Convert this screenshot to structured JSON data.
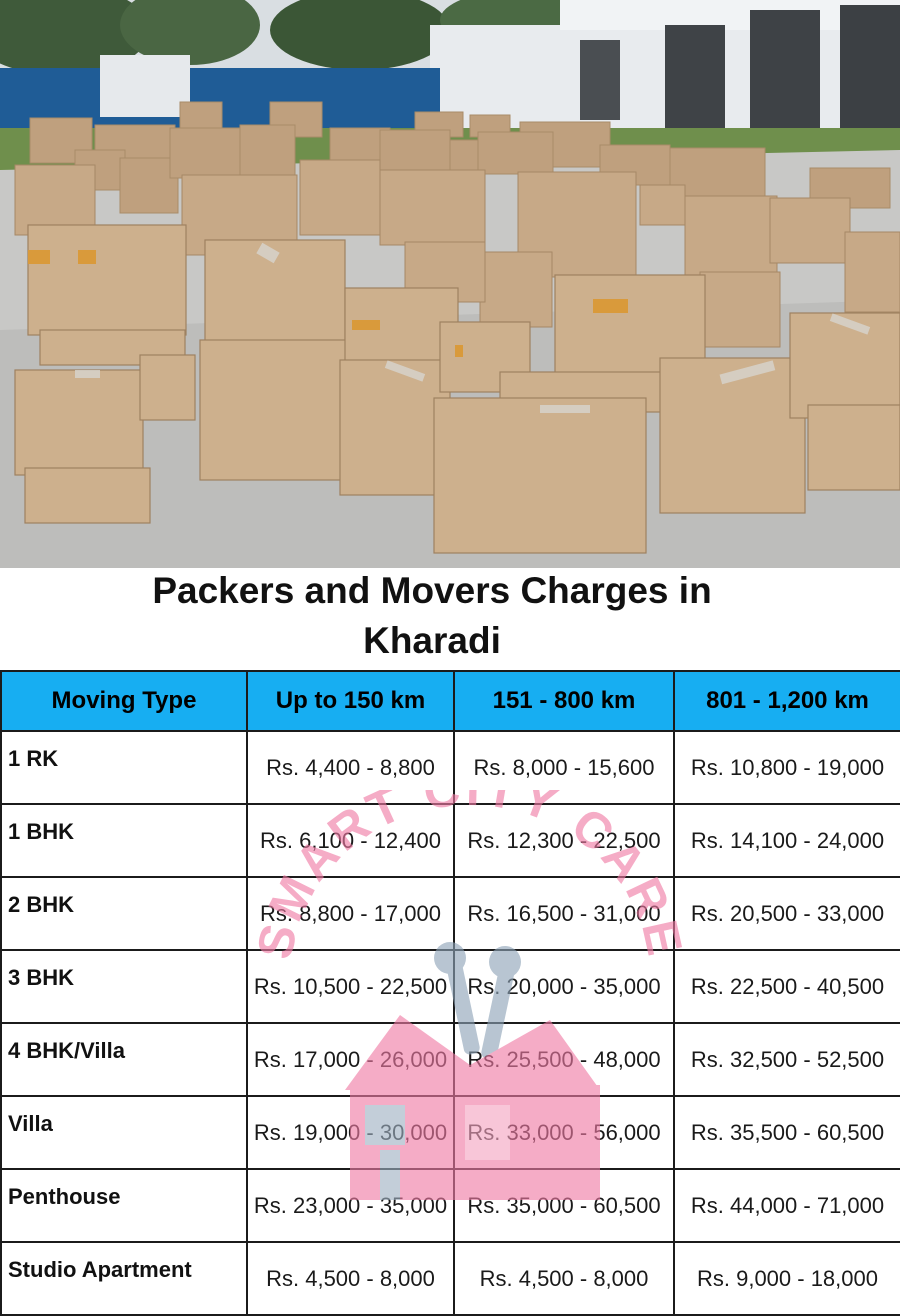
{
  "title": {
    "line1": "Packers and Movers Charges in",
    "line2": "Kharadi"
  },
  "table": {
    "headers": [
      "Moving Type",
      "Up to 150 km",
      "151 - 800 km",
      "801 - 1,200 km"
    ],
    "rows": [
      {
        "type": "1 RK",
        "r150": "Rs. 4,400 - 8,800",
        "r800": "Rs. 8,000 - 15,600",
        "r1200": "Rs. 10,800 - 19,000"
      },
      {
        "type": "1 BHK",
        "r150": "Rs. 6,100 - 12,400",
        "r800": "Rs. 12,300 - 22,500",
        "r1200": "Rs. 14,100 - 24,000"
      },
      {
        "type": "2 BHK",
        "r150": "Rs. 8,800 - 17,000",
        "r800": "Rs. 16,500 - 31,000",
        "r1200": "Rs. 20,500 - 33,000"
      },
      {
        "type": "3 BHK",
        "r150": "Rs. 10,500 - 22,500",
        "r800": "Rs. 20,000 - 35,000",
        "r1200": "Rs. 22,500 - 40,500"
      },
      {
        "type": "4 BHK/Villa",
        "r150": "Rs. 17,000 - 26,000",
        "r800": "Rs. 25,500 - 48,000",
        "r1200": "Rs. 32,500 - 52,500"
      },
      {
        "type": "Villa",
        "r150": "Rs. 19,000 - 30,000",
        "r800": "Rs. 33,000 - 56,000",
        "r1200": "Rs. 35,500 - 60,500"
      },
      {
        "type": "Penthouse",
        "r150": "Rs. 23,000 - 35,000",
        "r800": "Rs. 35,000 - 60,500",
        "r1200": "Rs. 44,000 - 71,000"
      },
      {
        "type": "Studio Apartment",
        "r150": "Rs. 4,500 - 8,000",
        "r800": "Rs. 4,500 - 8,000",
        "r1200": "Rs. 9,000 - 18,000"
      }
    ]
  },
  "watermark": {
    "text": "SMART CITY CARE",
    "color": "#f07aa4",
    "icon": "house-wrench-logo"
  },
  "colors": {
    "header_bg": "#17aef2",
    "border": "#1b1b1b",
    "text": "#111111"
  },
  "hero": {
    "icon": "cardboard-boxes-photo"
  }
}
